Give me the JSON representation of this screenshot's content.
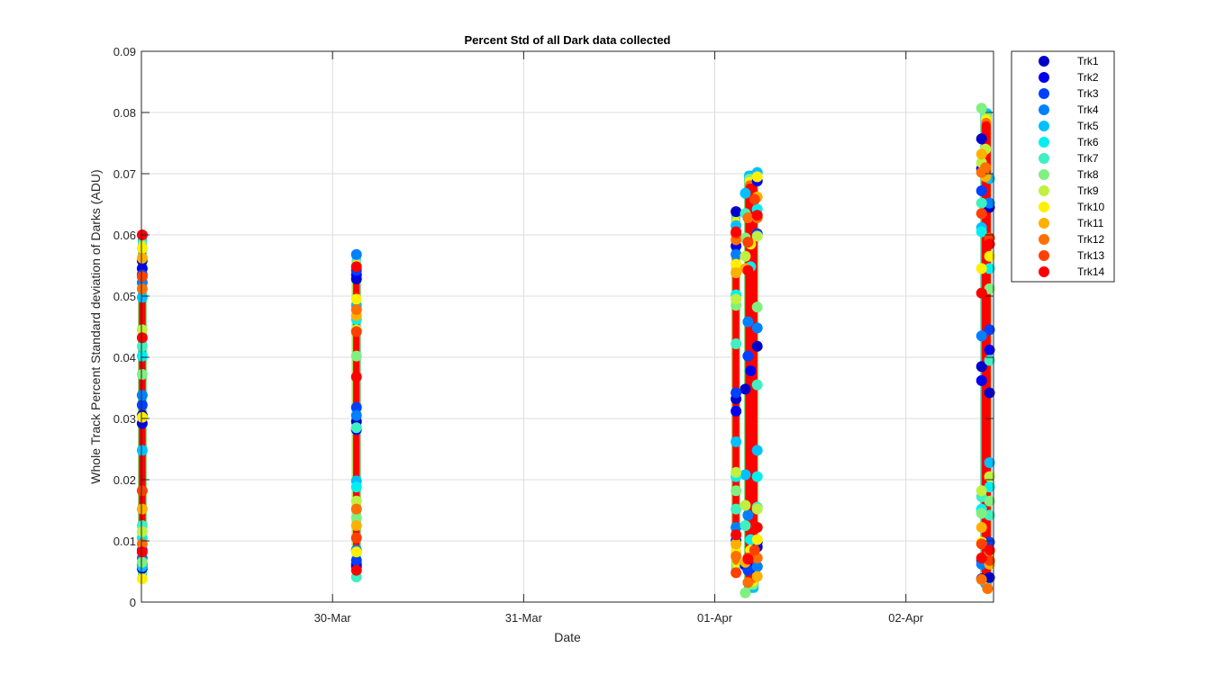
{
  "chart_data": {
    "type": "scatter",
    "title": "Percent Std of all Dark data collected",
    "xlabel": "Date",
    "ylabel": "Whole Track Percent Standard deviation of Darks (ADU)",
    "x_axis": {
      "type": "date",
      "range": [
        "29-Mar 2024 00:00",
        "02-Apr 2024 11:00"
      ],
      "tick_labels": [
        "30-Mar",
        "31-Mar",
        "01-Apr",
        "02-Apr"
      ]
    },
    "y_axis": {
      "range": [
        0,
        0.09
      ],
      "ticks": [
        0,
        0.01,
        0.02,
        0.03,
        0.04,
        0.05,
        0.06,
        0.07,
        0.08,
        0.09
      ],
      "tick_labels": [
        "0",
        "0.01",
        "0.02",
        "0.03",
        "0.04",
        "0.05",
        "0.06",
        "0.07",
        "0.08",
        "0.09"
      ]
    },
    "grid": true,
    "legend_position": "outside-right",
    "series": [
      {
        "name": "Trk1",
        "color": "#0000C8",
        "points": [
          [
            "29-Mar 00:06",
            0.0055
          ],
          [
            "29-Mar 00:06",
            0.0305
          ],
          [
            "29-Mar 00:06",
            0.0558
          ],
          [
            "30-Mar 03:00",
            0.0058
          ],
          [
            "30-Mar 03:00",
            0.0295
          ],
          [
            "30-Mar 03:00",
            0.0528
          ],
          [
            "01-Apr 02:40",
            0.0638
          ],
          [
            "01-Apr 02:40",
            0.0332
          ],
          [
            "01-Apr 03:50",
            0.006
          ],
          [
            "01-Apr 03:50",
            0.0348
          ],
          [
            "01-Apr 05:20",
            0.009
          ],
          [
            "01-Apr 05:20",
            0.0418
          ],
          [
            "02-Apr 09:30",
            0.0757
          ],
          [
            "02-Apr 09:30",
            0.0038
          ],
          [
            "02-Apr 09:30",
            0.0385
          ],
          [
            "02-Apr 10:30",
            0.0645
          ],
          [
            "02-Apr 10:30",
            0.004
          ],
          [
            "02-Apr 10:30",
            0.0342
          ]
        ]
      },
      {
        "name": "Trk2",
        "color": "#0000F0",
        "points": [
          [
            "29-Mar 00:06",
            0.0062
          ],
          [
            "29-Mar 00:06",
            0.0292
          ],
          [
            "29-Mar 00:06",
            0.0545
          ],
          [
            "30-Mar 03:00",
            0.0062
          ],
          [
            "30-Mar 03:00",
            0.0282
          ],
          [
            "30-Mar 03:00",
            0.0535
          ],
          [
            "01-Apr 02:40",
            0.0582
          ],
          [
            "01-Apr 02:40",
            0.0312
          ],
          [
            "01-Apr 04:30",
            0.0055
          ],
          [
            "01-Apr 04:30",
            0.0378
          ],
          [
            "01-Apr 05:20",
            0.0688
          ],
          [
            "01-Apr 05:20",
            0.0098
          ],
          [
            "02-Apr 09:30",
            0.0708
          ],
          [
            "02-Apr 09:30",
            0.0362
          ],
          [
            "02-Apr 10:30",
            0.0082
          ],
          [
            "02-Apr 10:30",
            0.0412
          ]
        ]
      },
      {
        "name": "Trk3",
        "color": "#0040FF",
        "points": [
          [
            "29-Mar 00:06",
            0.0085
          ],
          [
            "29-Mar 00:06",
            0.0322
          ],
          [
            "29-Mar 00:06",
            0.0535
          ],
          [
            "30-Mar 03:00",
            0.0068
          ],
          [
            "30-Mar 03:00",
            0.0318
          ],
          [
            "30-Mar 03:00",
            0.0542
          ],
          [
            "01-Apr 02:40",
            0.0101
          ],
          [
            "01-Apr 02:40",
            0.0342
          ],
          [
            "01-Apr 04:10",
            0.0052
          ],
          [
            "01-Apr 04:10",
            0.0402
          ],
          [
            "01-Apr 05:20",
            0.0058
          ],
          [
            "01-Apr 05:20",
            0.0602
          ],
          [
            "02-Apr 09:30",
            0.0068
          ],
          [
            "02-Apr 09:30",
            0.0672
          ],
          [
            "02-Apr 10:30",
            0.0098
          ],
          [
            "02-Apr 10:30",
            0.0445
          ]
        ]
      },
      {
        "name": "Trk4",
        "color": "#0080FF",
        "points": [
          [
            "29-Mar 00:06",
            0.0072
          ],
          [
            "29-Mar 00:06",
            0.0338
          ],
          [
            "29-Mar 00:06",
            0.0522
          ],
          [
            "30-Mar 03:00",
            0.0568
          ],
          [
            "30-Mar 03:00",
            0.0305
          ],
          [
            "30-Mar 03:00",
            0.0085
          ],
          [
            "01-Apr 02:40",
            0.0568
          ],
          [
            "01-Apr 02:40",
            0.0122
          ],
          [
            "01-Apr 04:10",
            0.0142
          ],
          [
            "01-Apr 04:10",
            0.0458
          ],
          [
            "01-Apr 05:20",
            0.0058
          ],
          [
            "01-Apr 05:20",
            0.0448
          ],
          [
            "02-Apr 09:30",
            0.0062
          ],
          [
            "02-Apr 09:30",
            0.0435
          ],
          [
            "02-Apr 10:30",
            0.0652
          ],
          [
            "02-Apr 10:30",
            0.0065
          ]
        ]
      },
      {
        "name": "Trk5",
        "color": "#00C0FF",
        "points": [
          [
            "29-Mar 00:06",
            0.0058
          ],
          [
            "29-Mar 00:06",
            0.0248
          ],
          [
            "29-Mar 00:06",
            0.0498
          ],
          [
            "30-Mar 03:00",
            0.0485
          ],
          [
            "30-Mar 03:00",
            0.0198
          ],
          [
            "01-Apr 02:40",
            0.0615
          ],
          [
            "01-Apr 02:40",
            0.0262
          ],
          [
            "01-Apr 03:50",
            0.0668
          ],
          [
            "01-Apr 03:50",
            0.0208
          ],
          [
            "01-Apr 05:20",
            0.0702
          ],
          [
            "01-Apr 05:20",
            0.0248
          ],
          [
            "02-Apr 09:30",
            0.0612
          ],
          [
            "02-Apr 09:30",
            0.0148
          ],
          [
            "02-Apr 10:30",
            0.0692
          ],
          [
            "02-Apr 10:30",
            0.0228
          ]
        ]
      },
      {
        "name": "Trk6",
        "color": "#00F0F0",
        "points": [
          [
            "29-Mar 00:06",
            0.0105
          ],
          [
            "29-Mar 00:06",
            0.0402
          ],
          [
            "30-Mar 03:00",
            0.0188
          ],
          [
            "30-Mar 03:00",
            0.0462
          ],
          [
            "01-Apr 02:40",
            0.0205
          ],
          [
            "01-Apr 02:40",
            0.0502
          ],
          [
            "01-Apr 04:30",
            0.0102
          ],
          [
            "01-Apr 04:30",
            0.0548
          ],
          [
            "01-Apr 05:20",
            0.0642
          ],
          [
            "01-Apr 05:20",
            0.0205
          ],
          [
            "02-Apr 09:30",
            0.0605
          ],
          [
            "02-Apr 09:30",
            0.0152
          ],
          [
            "02-Apr 10:30",
            0.0545
          ],
          [
            "02-Apr 10:30",
            0.0188
          ]
        ]
      },
      {
        "name": "Trk7",
        "color": "#40F0C0",
        "points": [
          [
            "29-Mar 00:06",
            0.0125
          ],
          [
            "29-Mar 00:06",
            0.0418
          ],
          [
            "30-Mar 03:00",
            0.0041
          ],
          [
            "30-Mar 03:00",
            0.0285
          ],
          [
            "01-Apr 02:40",
            0.0152
          ],
          [
            "01-Apr 02:40",
            0.0422
          ],
          [
            "01-Apr 03:50",
            0.0635
          ],
          [
            "01-Apr 03:50",
            0.0125
          ],
          [
            "01-Apr 05:20",
            0.0355
          ],
          [
            "01-Apr 05:20",
            0.0155
          ],
          [
            "02-Apr 09:30",
            0.0652
          ],
          [
            "02-Apr 09:30",
            0.0172
          ],
          [
            "02-Apr 10:30",
            0.0395
          ],
          [
            "02-Apr 10:30",
            0.0142
          ]
        ]
      },
      {
        "name": "Trk8",
        "color": "#80F080",
        "points": [
          [
            "29-Mar 00:06",
            0.0065
          ],
          [
            "29-Mar 00:06",
            0.0372
          ],
          [
            "30-Mar 03:00",
            0.0138
          ],
          [
            "30-Mar 03:00",
            0.0402
          ],
          [
            "01-Apr 02:40",
            0.0182
          ],
          [
            "01-Apr 02:40",
            0.0485
          ],
          [
            "01-Apr 03:50",
            0.0015
          ],
          [
            "01-Apr 03:50",
            0.0595
          ],
          [
            "01-Apr 05:20",
            0.0122
          ],
          [
            "01-Apr 05:20",
            0.0482
          ],
          [
            "02-Apr 09:30",
            0.0807
          ],
          [
            "02-Apr 09:30",
            0.0145
          ],
          [
            "02-Apr 10:30",
            0.0165
          ],
          [
            "02-Apr 10:30",
            0.0512
          ]
        ]
      },
      {
        "name": "Trk9",
        "color": "#C0F040",
        "points": [
          [
            "29-Mar 00:06",
            0.0115
          ],
          [
            "29-Mar 00:06",
            0.0445
          ],
          [
            "30-Mar 03:00",
            0.0165
          ],
          [
            "30-Mar 03:00",
            0.0445
          ],
          [
            "01-Apr 02:40",
            0.0212
          ],
          [
            "01-Apr 02:40",
            0.0495
          ],
          [
            "01-Apr 03:50",
            0.0565
          ],
          [
            "01-Apr 03:50",
            0.0158
          ],
          [
            "01-Apr 05:20",
            0.0598
          ],
          [
            "01-Apr 05:20",
            0.0152
          ],
          [
            "02-Apr 09:30",
            0.0718
          ],
          [
            "02-Apr 09:30",
            0.0182
          ],
          [
            "02-Apr 10:00",
            0.074
          ],
          [
            "02-Apr 10:30",
            0.0205
          ]
        ]
      },
      {
        "name": "Trk10",
        "color": "#FFF000",
        "points": [
          [
            "29-Mar 00:06",
            0.0038
          ],
          [
            "29-Mar 00:06",
            0.0578
          ],
          [
            "29-Mar 00:06",
            0.0302
          ],
          [
            "30-Mar 03:00",
            0.0495
          ],
          [
            "30-Mar 03:00",
            0.0082
          ],
          [
            "01-Apr 02:40",
            0.0552
          ],
          [
            "01-Apr 02:40",
            0.0082
          ],
          [
            "01-Apr 04:30",
            0.0585
          ],
          [
            "01-Apr 04:30",
            0.0085
          ],
          [
            "01-Apr 05:20",
            0.0695
          ],
          [
            "01-Apr 05:20",
            0.0102
          ],
          [
            "02-Apr 09:30",
            0.0098
          ],
          [
            "02-Apr 09:30",
            0.0545
          ],
          [
            "02-Apr 10:30",
            0.0082
          ],
          [
            "02-Apr 10:30",
            0.0565
          ]
        ]
      },
      {
        "name": "Trk11",
        "color": "#FFB000",
        "points": [
          [
            "29-Mar 00:06",
            0.0152
          ],
          [
            "29-Mar 00:06",
            0.0562
          ],
          [
            "30-Mar 03:00",
            0.0468
          ],
          [
            "30-Mar 03:00",
            0.0125
          ],
          [
            "01-Apr 02:40",
            0.0538
          ],
          [
            "01-Apr 02:40",
            0.0095
          ],
          [
            "01-Apr 03:50",
            0.0065
          ],
          [
            "01-Apr 03:50",
            0.0545
          ],
          [
            "01-Apr 05:20",
            0.0662
          ],
          [
            "01-Apr 05:20",
            0.0042
          ],
          [
            "02-Apr 09:30",
            0.0732
          ],
          [
            "02-Apr 09:30",
            0.0122
          ],
          [
            "02-Apr 10:00",
            0.0695
          ],
          [
            "02-Apr 10:30",
            0.0062
          ]
        ]
      },
      {
        "name": "Trk12",
        "color": "#FF7000",
        "points": [
          [
            "29-Mar 00:06",
            0.0095
          ],
          [
            "29-Mar 00:06",
            0.0512
          ],
          [
            "30-Mar 03:00",
            0.0478
          ],
          [
            "30-Mar 03:00",
            0.0152
          ],
          [
            "01-Apr 02:40",
            0.0592
          ],
          [
            "01-Apr 02:40",
            0.0075
          ],
          [
            "01-Apr 04:10",
            0.0628
          ],
          [
            "01-Apr 04:10",
            0.0032
          ],
          [
            "01-Apr 05:20",
            0.0628
          ],
          [
            "01-Apr 05:20",
            0.0072
          ],
          [
            "02-Apr 09:30",
            0.0702
          ],
          [
            "02-Apr 09:30",
            0.0037
          ],
          [
            "02-Apr 10:00",
            0.071
          ],
          [
            "02-Apr 10:15",
            0.0022
          ]
        ]
      },
      {
        "name": "Trk13",
        "color": "#FF4000",
        "points": [
          [
            "29-Mar 00:06",
            0.0182
          ],
          [
            "29-Mar 00:06",
            0.0532
          ],
          [
            "30-Mar 03:00",
            0.0442
          ],
          [
            "30-Mar 03:00",
            0.0105
          ],
          [
            "01-Apr 02:40",
            0.0602
          ],
          [
            "01-Apr 02:40",
            0.0048
          ],
          [
            "01-Apr 04:10",
            0.0588
          ],
          [
            "01-Apr 04:10",
            0.0072
          ],
          [
            "01-Apr 05:00",
            0.0658
          ],
          [
            "01-Apr 05:00",
            0.0085
          ],
          [
            "02-Apr 09:30",
            0.0635
          ],
          [
            "02-Apr 09:30",
            0.0095
          ],
          [
            "02-Apr 10:30",
            0.0595
          ],
          [
            "02-Apr 10:30",
            0.0068
          ]
        ]
      },
      {
        "name": "Trk14",
        "color": "#FF0000",
        "points": [
          [
            "29-Mar 00:06",
            0.06
          ],
          [
            "29-Mar 00:06",
            0.0082
          ],
          [
            "29-Mar 00:06",
            0.0432
          ],
          [
            "30-Mar 03:00",
            0.0548
          ],
          [
            "30-Mar 03:00",
            0.0052
          ],
          [
            "30-Mar 03:00",
            0.0368
          ],
          [
            "01-Apr 02:40",
            0.0605
          ],
          [
            "01-Apr 02:40",
            0.011
          ],
          [
            "01-Apr 04:10",
            0.007
          ],
          [
            "01-Apr 04:10",
            0.0542
          ],
          [
            "01-Apr 05:20",
            0.0632
          ],
          [
            "01-Apr 05:20",
            0.0122
          ],
          [
            "02-Apr 09:30",
            0.0072
          ],
          [
            "02-Apr 09:30",
            0.0505
          ],
          [
            "02-Apr 10:30",
            0.0585
          ],
          [
            "02-Apr 10:30",
            0.0085
          ]
        ]
      }
    ],
    "dense_bands": [
      {
        "x_start": "29-Mar 00:04",
        "x_end": "29-Mar 00:10",
        "y_min": 0.0035,
        "y_max": 0.06
      },
      {
        "x_start": "30-Mar 02:56",
        "x_end": "30-Mar 03:04",
        "y_min": 0.004,
        "y_max": 0.057
      },
      {
        "x_start": "01-Apr 02:30",
        "x_end": "01-Apr 02:48",
        "y_min": 0.0045,
        "y_max": 0.064
      },
      {
        "x_start": "01-Apr 03:40",
        "x_end": "01-Apr 05:30",
        "y_min": 0.0015,
        "y_max": 0.0705
      },
      {
        "x_start": "02-Apr 09:20",
        "x_end": "02-Apr 10:48",
        "y_min": 0.0022,
        "y_max": 0.0807
      }
    ]
  }
}
